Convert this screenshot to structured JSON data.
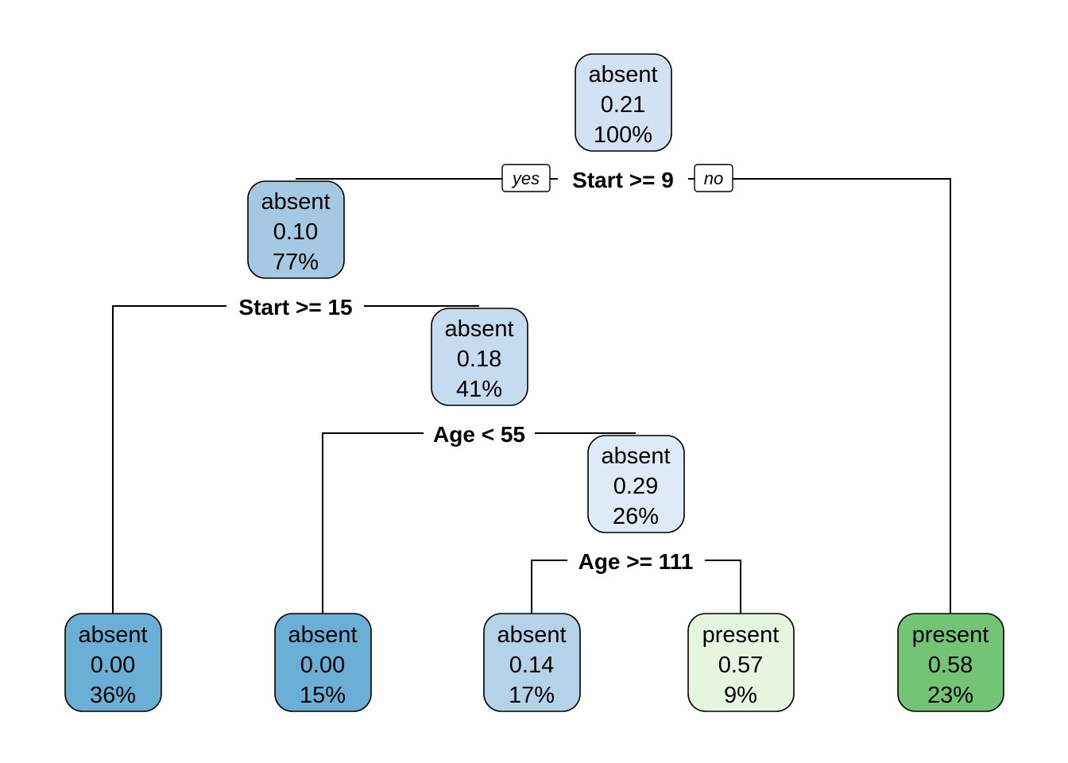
{
  "tree": {
    "nodes": [
      {
        "id": "root",
        "class": "absent",
        "prob": "0.21",
        "pct": "100%",
        "fill": "#d3e2f2"
      },
      {
        "id": "n2",
        "class": "absent",
        "prob": "0.10",
        "pct": "77%",
        "fill": "#a5c9e3"
      },
      {
        "id": "n5",
        "class": "absent",
        "prob": "0.18",
        "pct": "41%",
        "fill": "#c6dbef"
      },
      {
        "id": "n11",
        "class": "absent",
        "prob": "0.29",
        "pct": "26%",
        "fill": "#deebf7"
      },
      {
        "id": "leaf1",
        "class": "absent",
        "prob": "0.00",
        "pct": "36%",
        "fill": "#6baed6"
      },
      {
        "id": "leaf2",
        "class": "absent",
        "prob": "0.00",
        "pct": "15%",
        "fill": "#6baed6"
      },
      {
        "id": "leaf3",
        "class": "absent",
        "prob": "0.14",
        "pct": "17%",
        "fill": "#b4d2e8"
      },
      {
        "id": "leaf4",
        "class": "present",
        "prob": "0.57",
        "pct": "9%",
        "fill": "#e5f5e0"
      },
      {
        "id": "leaf5",
        "class": "present",
        "prob": "0.58",
        "pct": "23%",
        "fill": "#74c476"
      }
    ],
    "splits": [
      {
        "id": "s_root",
        "label": "Start >= 9"
      },
      {
        "id": "s_n2",
        "label": "Start >= 15"
      },
      {
        "id": "s_n5",
        "label": "Age < 55"
      },
      {
        "id": "s_n11",
        "label": "Age >= 111"
      }
    ],
    "branch_labels": {
      "yes": "yes",
      "no": "no"
    }
  }
}
